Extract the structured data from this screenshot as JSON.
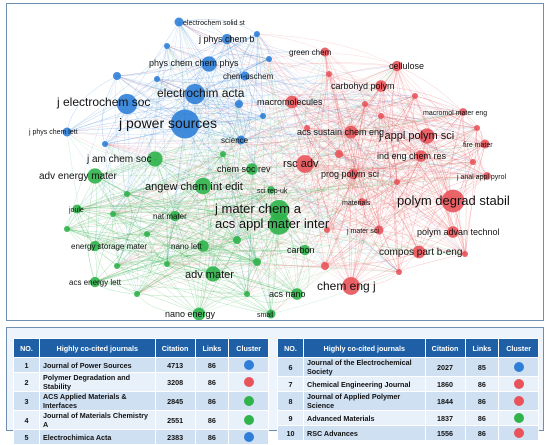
{
  "colors": {
    "blue": "#2f7fd8",
    "red": "#e8545a",
    "green": "#2fb34a",
    "header": "#1f5fa6"
  },
  "network": {
    "blue": [
      {
        "label": "electrochem solid st",
        "size": 4
      },
      {
        "label": "j phys chem b",
        "size": 5
      },
      {
        "label": "phys chem chem phys",
        "size": 9
      },
      {
        "label": "chem-uschem",
        "size": 4
      },
      {
        "label": "j electrochem soc",
        "size": 13
      },
      {
        "label": "electrochim acta",
        "size": 13
      },
      {
        "label": "j power sources",
        "size": 20
      },
      {
        "label": "j phys chem lett",
        "size": 4
      },
      {
        "label": "science",
        "size": 4
      }
    ],
    "red": [
      {
        "label": "green chem",
        "size": 4
      },
      {
        "label": "cellulose",
        "size": 5
      },
      {
        "label": "carbohyd polym",
        "size": 6
      },
      {
        "label": "macromolecules",
        "size": 7
      },
      {
        "label": "macromol mater eng",
        "size": 3
      },
      {
        "label": "acs sustain chem eng",
        "size": 7
      },
      {
        "label": "j appl polym sci",
        "size": 9
      },
      {
        "label": "rsc adv",
        "size": 11
      },
      {
        "label": "ind eng chem res",
        "size": 6
      },
      {
        "label": "fire mater",
        "size": 4
      },
      {
        "label": "prog polym sci",
        "size": 5
      },
      {
        "label": "j anal appl pyrol",
        "size": 3
      },
      {
        "label": "polym degrad stabil",
        "size": 15
      },
      {
        "label": "materials",
        "size": 3
      },
      {
        "label": "polym advan technol",
        "size": 6
      },
      {
        "label": "j mater sci",
        "size": 4
      },
      {
        "label": "compos part b-eng",
        "size": 7
      },
      {
        "label": "chem eng j",
        "size": 11
      }
    ],
    "green": [
      {
        "label": "j am chem soc",
        "size": 9
      },
      {
        "label": "adv energy mater",
        "size": 9
      },
      {
        "label": "chem soc rev",
        "size": 6
      },
      {
        "label": "angew chem int edit",
        "size": 10
      },
      {
        "label": "sci rep-uk",
        "size": 3
      },
      {
        "label": "j mater chem a",
        "size": 13
      },
      {
        "label": "acs appl mater inter",
        "size": 14
      },
      {
        "label": "joule",
        "size": 4
      },
      {
        "label": "nat mater",
        "size": 5
      },
      {
        "label": "energy storage mater",
        "size": 5
      },
      {
        "label": "nano lett",
        "size": 6
      },
      {
        "label": "carbon",
        "size": 5
      },
      {
        "label": "acs energy lett",
        "size": 5
      },
      {
        "label": "adv mater",
        "size": 9
      },
      {
        "label": "acs nano",
        "size": 6
      },
      {
        "label": "nano energy",
        "size": 7
      },
      {
        "label": "small",
        "size": 4
      }
    ]
  },
  "table": {
    "headers": {
      "no": "NO.",
      "journal": "Highly co-cited journals",
      "citation": "Citation",
      "links": "Links",
      "cluster": "Cluster"
    },
    "left": [
      {
        "no": "1",
        "journal": "Journal of Power Sources",
        "citation": "4713",
        "links": "86",
        "cluster": "blue"
      },
      {
        "no": "2",
        "journal": "Polymer Degradation and Stability",
        "citation": "3208",
        "links": "86",
        "cluster": "red"
      },
      {
        "no": "3",
        "journal": "ACS Applied Materials & Interfaces",
        "citation": "2845",
        "links": "86",
        "cluster": "green"
      },
      {
        "no": "4",
        "journal": "Journal of Materials Chemistry A",
        "citation": "2551",
        "links": "86",
        "cluster": "green"
      },
      {
        "no": "5",
        "journal": "Electrochimica Acta",
        "citation": "2383",
        "links": "86",
        "cluster": "blue"
      }
    ],
    "right": [
      {
        "no": "6",
        "journal": "Journal of the Electrochemical Society",
        "citation": "2027",
        "links": "85",
        "cluster": "blue"
      },
      {
        "no": "7",
        "journal": "Chemical Engineering Journal",
        "citation": "1860",
        "links": "86",
        "cluster": "red"
      },
      {
        "no": "8",
        "journal": "Journal of Applied Polymer Science",
        "citation": "1844",
        "links": "86",
        "cluster": "red"
      },
      {
        "no": "9",
        "journal": "Advanced Materials",
        "citation": "1837",
        "links": "86",
        "cluster": "green"
      },
      {
        "no": "10",
        "journal": "RSC Advances",
        "citation": "1556",
        "links": "86",
        "cluster": "red"
      }
    ]
  }
}
